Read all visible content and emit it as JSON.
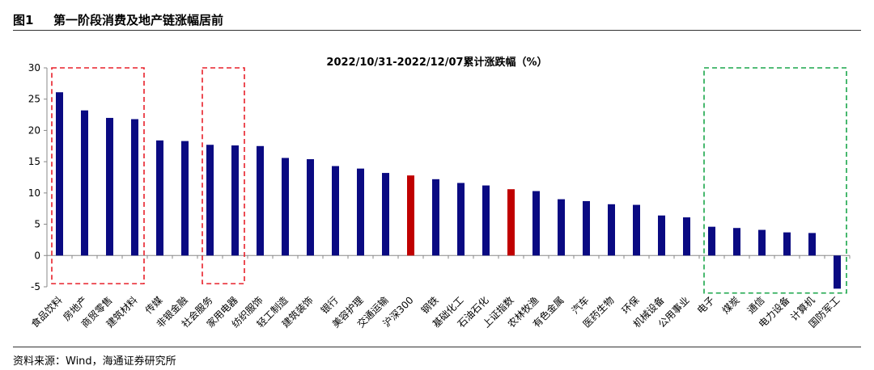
{
  "figure": {
    "label": "图1",
    "title": "第一阶段消费及地产链涨幅居前",
    "source": "资料来源：Wind，海通证券研究所"
  },
  "chart_data": {
    "type": "bar",
    "title": "2022/10/31-2022/12/07累计涨跌幅（%）",
    "xlabel": "",
    "ylabel": "",
    "ylim": [
      -5,
      30
    ],
    "yticks": [
      -5,
      0,
      5,
      10,
      15,
      20,
      25,
      30
    ],
    "grid": false,
    "colors": {
      "default": "#0a0a82",
      "highlight": "#c00000",
      "box_red": "#e8202a",
      "box_green": "#1aa64a"
    },
    "categories": [
      "食品饮料",
      "房地产",
      "商贸零售",
      "建筑材料",
      "传媒",
      "非银金融",
      "社会服务",
      "家用电器",
      "纺织服饰",
      "轻工制造",
      "建筑装饰",
      "银行",
      "美容护理",
      "交通运输",
      "沪深300",
      "钢铁",
      "基础化工",
      "石油石化",
      "上证指数",
      "农林牧渔",
      "有色金属",
      "汽车",
      "医药生物",
      "环保",
      "机械设备",
      "公用事业",
      "电子",
      "煤炭",
      "通信",
      "电力设备",
      "计算机",
      "国防军工"
    ],
    "values": [
      26.1,
      23.2,
      22.0,
      21.8,
      18.4,
      18.3,
      17.7,
      17.6,
      17.5,
      15.6,
      15.4,
      14.3,
      13.9,
      13.2,
      12.8,
      12.2,
      11.6,
      11.2,
      10.6,
      10.3,
      9.0,
      8.7,
      8.2,
      8.1,
      6.4,
      6.1,
      4.6,
      4.4,
      4.1,
      3.7,
      3.6,
      -5.3
    ],
    "highlighted": [
      "沪深300",
      "上证指数"
    ],
    "annotations": [
      {
        "type": "dashed-box",
        "color": "red",
        "from": "食品饮料",
        "to": "建筑材料",
        "y_range": [
          -4.5,
          30
        ]
      },
      {
        "type": "dashed-box",
        "color": "red",
        "from": "社会服务",
        "to": "家用电器",
        "y_range": [
          -4.5,
          30
        ]
      },
      {
        "type": "dashed-box",
        "color": "green",
        "from": "电子",
        "to": "国防军工",
        "y_range": [
          -6,
          30
        ]
      }
    ]
  }
}
